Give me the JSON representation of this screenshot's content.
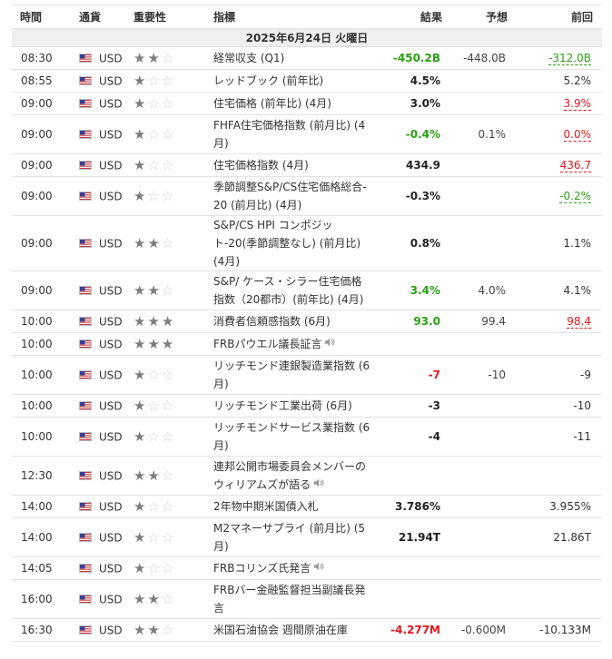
{
  "headers": {
    "time": "時間",
    "currency": "通貨",
    "importance": "重要性",
    "event": "指標",
    "actual": "結果",
    "forecast": "予想",
    "previous": "前回"
  },
  "date_label": "2025年6月24日 火曜日",
  "flag_icon": "us-flag-icon",
  "colors": {
    "positive": "#2aa012",
    "negative": "#e0191f",
    "star_filled": "#7d7d7d",
    "star_empty": "#d0d0d0"
  },
  "rows": [
    {
      "time": "08:30",
      "currency": "USD",
      "stars": 2,
      "event": "経常収支 (Q1)",
      "speech": false,
      "actual": "-450.2B",
      "actual_color": "up",
      "forecast": "-448.0B",
      "previous": "-312.0B",
      "prev_rev": "up"
    },
    {
      "time": "08:55",
      "currency": "USD",
      "stars": 1,
      "event": "レッドブック (前年比)",
      "speech": false,
      "actual": "4.5%",
      "actual_color": "",
      "forecast": "",
      "previous": "5.2%",
      "prev_rev": ""
    },
    {
      "time": "09:00",
      "currency": "USD",
      "stars": 1,
      "event": "住宅価格 (前年比) (4月)",
      "speech": false,
      "actual": "3.0%",
      "actual_color": "",
      "forecast": "",
      "previous": "3.9%",
      "prev_rev": "down"
    },
    {
      "time": "09:00",
      "currency": "USD",
      "stars": 1,
      "event": "FHFA住宅価格指数 (前月比) (4月)",
      "speech": false,
      "actual": "-0.4%",
      "actual_color": "up",
      "forecast": "0.1%",
      "previous": "0.0%",
      "prev_rev": "down"
    },
    {
      "time": "09:00",
      "currency": "USD",
      "stars": 1,
      "event": "住宅価格指数 (4月)",
      "speech": false,
      "actual": "434.9",
      "actual_color": "",
      "forecast": "",
      "previous": "436.7",
      "prev_rev": "down"
    },
    {
      "time": "09:00",
      "currency": "USD",
      "stars": 1,
      "event": "季節調整S&P/CS住宅価格総合‐20 (前月比) (4月)",
      "speech": false,
      "actual": "-0.3%",
      "actual_color": "",
      "forecast": "",
      "previous": "-0.2%",
      "prev_rev": "up"
    },
    {
      "time": "09:00",
      "currency": "USD",
      "stars": 2,
      "event": "S&P/CS HPI コンポジット-20(季節調整なし) (前月比) (4月)",
      "speech": false,
      "actual": "0.8%",
      "actual_color": "",
      "forecast": "",
      "previous": "1.1%",
      "prev_rev": ""
    },
    {
      "time": "09:00",
      "currency": "USD",
      "stars": 2,
      "event": "S&P/ ケース・シラー住宅価格指数（20都市）(前年比) (4月)",
      "speech": false,
      "actual": "3.4%",
      "actual_color": "up",
      "forecast": "4.0%",
      "previous": "4.1%",
      "prev_rev": ""
    },
    {
      "time": "10:00",
      "currency": "USD",
      "stars": 3,
      "event": "消費者信頼感指数 (6月)",
      "speech": false,
      "actual": "93.0",
      "actual_color": "up",
      "forecast": "99.4",
      "previous": "98.4",
      "prev_rev": "down"
    },
    {
      "time": "10:00",
      "currency": "USD",
      "stars": 3,
      "event": "FRBパウエル議長証言",
      "speech": true,
      "actual": "",
      "actual_color": "",
      "forecast": "",
      "previous": "",
      "prev_rev": ""
    },
    {
      "time": "10:00",
      "currency": "USD",
      "stars": 1,
      "event": "リッチモンド連銀製造業指数 (6月)",
      "speech": false,
      "actual": "-7",
      "actual_color": "down",
      "forecast": "-10",
      "previous": "-9",
      "prev_rev": ""
    },
    {
      "time": "10:00",
      "currency": "USD",
      "stars": 1,
      "event": "リッチモンド工業出荷 (6月)",
      "speech": false,
      "actual": "-3",
      "actual_color": "",
      "forecast": "",
      "previous": "-10",
      "prev_rev": ""
    },
    {
      "time": "10:00",
      "currency": "USD",
      "stars": 1,
      "event": "リッチモンドサービス業指数 (6月)",
      "speech": false,
      "actual": "-4",
      "actual_color": "",
      "forecast": "",
      "previous": "-11",
      "prev_rev": ""
    },
    {
      "time": "12:30",
      "currency": "USD",
      "stars": 2,
      "event": "連邦公開市場委員会メンバーのウィリアムズが語る",
      "speech": true,
      "actual": "",
      "actual_color": "",
      "forecast": "",
      "previous": "",
      "prev_rev": ""
    },
    {
      "time": "14:00",
      "currency": "USD",
      "stars": 1,
      "event": "2年物中期米国債入札",
      "speech": false,
      "actual": "3.786%",
      "actual_color": "",
      "forecast": "",
      "previous": "3.955%",
      "prev_rev": ""
    },
    {
      "time": "14:00",
      "currency": "USD",
      "stars": 1,
      "event": "M2マネーサプライ (前月比) (5月)",
      "speech": false,
      "actual": "21.94T",
      "actual_color": "",
      "forecast": "",
      "previous": "21.86T",
      "prev_rev": ""
    },
    {
      "time": "14:05",
      "currency": "USD",
      "stars": 1,
      "event": "FRBコリンズ氏発言",
      "speech": true,
      "actual": "",
      "actual_color": "",
      "forecast": "",
      "previous": "",
      "prev_rev": ""
    },
    {
      "time": "16:00",
      "currency": "USD",
      "stars": 2,
      "event": "FRBバー金融監督担当副議長発言",
      "speech": false,
      "actual": "",
      "actual_color": "",
      "forecast": "",
      "previous": "",
      "prev_rev": ""
    },
    {
      "time": "16:30",
      "currency": "USD",
      "stars": 2,
      "event": "米国石油協会 週間原油在庫",
      "speech": false,
      "actual": "-4.277M",
      "actual_color": "down",
      "forecast": "-0.600M",
      "previous": "-10.133M",
      "prev_rev": ""
    }
  ]
}
